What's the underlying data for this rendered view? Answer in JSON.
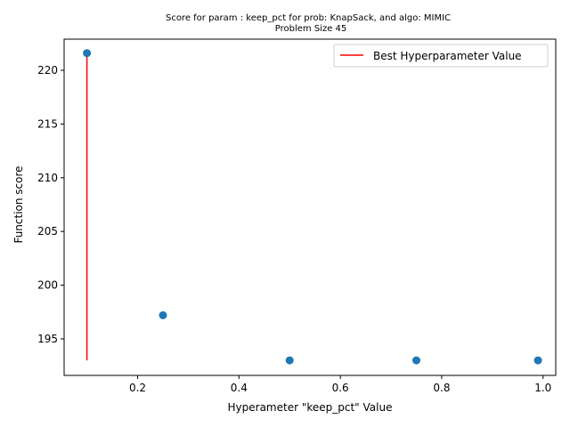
{
  "chart_data": {
    "type": "scatter",
    "title_line1": "Score for param : keep_pct for prob: KnapSack, and algo: MIMIC",
    "title_line2": "Problem Size 45",
    "xlabel": "Hyperameter \"keep_pct\" Value",
    "ylabel": "Function score",
    "xlim": [
      0.055,
      1.025
    ],
    "ylim": [
      191.6,
      222.9
    ],
    "xticks": [
      0.2,
      0.4,
      0.6,
      0.8,
      1.0
    ],
    "xtick_labels": [
      "0.2",
      "0.4",
      "0.6",
      "0.8",
      "1.0"
    ],
    "yticks": [
      195,
      200,
      205,
      210,
      215,
      220
    ],
    "ytick_labels": [
      "195",
      "200",
      "205",
      "210",
      "215",
      "220"
    ],
    "series": [
      {
        "x": [
          0.1,
          0.25,
          0.5,
          0.75,
          0.99
        ],
        "y": [
          221.6,
          197.2,
          193.0,
          193.0,
          193.0
        ],
        "color": "#1f77b4"
      }
    ],
    "best_line": {
      "name": "Best Hyperparameter Value",
      "x": 0.1,
      "y_from": 193.0,
      "y_to": 221.6,
      "color": "#ff0000"
    },
    "legend_position": "upper right",
    "grid": false
  }
}
